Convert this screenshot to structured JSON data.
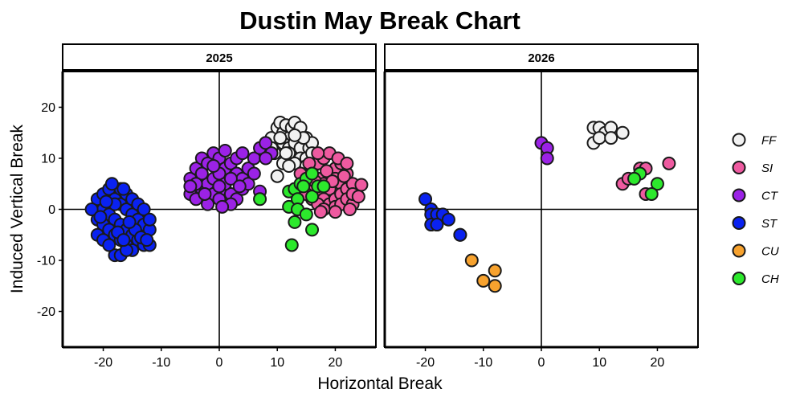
{
  "chart_data": {
    "type": "scatter",
    "title": "Dustin May Break Chart",
    "xlabel": "Horizontal Break",
    "ylabel": "Induced Vertical Break",
    "xlim": [
      -27,
      27
    ],
    "ylim": [
      -27,
      27
    ],
    "x_ticks": [
      -20,
      -10,
      0,
      10,
      20
    ],
    "y_ticks": [
      -20,
      -10,
      0,
      10,
      20
    ],
    "grid": false,
    "reference_lines": {
      "x": 0,
      "y": 0
    },
    "legend_position": "right",
    "panels": [
      {
        "label": "2025",
        "series": [
          {
            "name": "FF",
            "color": "#f2f2f2",
            "points": [
              [
                9,
                14
              ],
              [
                10,
                16
              ],
              [
                10.5,
                17
              ],
              [
                11,
                15
              ],
              [
                11.5,
                16.5
              ],
              [
                12,
                14
              ],
              [
                12.5,
                16
              ],
              [
                13,
                17
              ],
              [
                13.5,
                15
              ],
              [
                14,
                16
              ],
              [
                10,
                12
              ],
              [
                11,
                13
              ],
              [
                12,
                12
              ],
              [
                13,
                13
              ],
              [
                14,
                12
              ],
              [
                15,
                14
              ],
              [
                15.5,
                12
              ],
              [
                16,
                13
              ],
              [
                12,
                11
              ],
              [
                14,
                10
              ],
              [
                13,
                9
              ],
              [
                15,
                10
              ],
              [
                11,
                9
              ],
              [
                10,
                6.5
              ],
              [
                12,
                8.5
              ],
              [
                16,
                11
              ],
              [
                9.5,
                11
              ],
              [
                8,
                13
              ],
              [
                9,
                12
              ],
              [
                14.5,
                14
              ],
              [
                13,
                14.5
              ],
              [
                11.5,
                11
              ],
              [
                15,
                8.5
              ],
              [
                10.5,
                14
              ]
            ]
          },
          {
            "name": "SI",
            "color": "#ee5aa0",
            "points": [
              [
                16,
                8
              ],
              [
                17,
                9
              ],
              [
                18,
                10
              ],
              [
                19,
                7
              ],
              [
                20,
                8
              ],
              [
                21,
                9
              ],
              [
                17,
                6
              ],
              [
                18,
                5
              ],
              [
                19,
                4
              ],
              [
                20,
                6
              ],
              [
                21,
                5
              ],
              [
                22,
                7
              ],
              [
                16,
                4
              ],
              [
                17,
                3
              ],
              [
                18,
                2
              ],
              [
                19,
                1
              ],
              [
                20,
                2
              ],
              [
                21,
                3
              ],
              [
                22,
                4
              ],
              [
                23,
                5
              ],
              [
                24.5,
                4.8
              ],
              [
                15,
                6
              ],
              [
                16,
                2
              ],
              [
                17,
                1
              ],
              [
                18,
                0
              ],
              [
                20,
                0.5
              ],
              [
                21,
                1
              ],
              [
                22,
                2
              ],
              [
                23,
                1
              ],
              [
                19,
                11
              ],
              [
                17,
                11
              ],
              [
                15.5,
                9
              ],
              [
                20.5,
                10
              ],
              [
                22,
                9
              ],
              [
                18.5,
                7.5
              ],
              [
                14,
                7
              ],
              [
                19.5,
                5.5
              ],
              [
                16.5,
                5.5
              ],
              [
                23,
                3
              ],
              [
                21.5,
                6.5
              ],
              [
                17.5,
                -0.5
              ],
              [
                24,
                2.5
              ],
              [
                15,
                3
              ],
              [
                20,
                -0.5
              ],
              [
                22.5,
                0
              ]
            ]
          },
          {
            "name": "CT",
            "color": "#9b22e6",
            "points": [
              [
                -5,
                6
              ],
              [
                -4,
                8
              ],
              [
                -3,
                10
              ],
              [
                -2,
                9
              ],
              [
                -1,
                11
              ],
              [
                0,
                10
              ],
              [
                1,
                8
              ],
              [
                2,
                9
              ],
              [
                3,
                7
              ],
              [
                4,
                6
              ],
              [
                -5,
                3
              ],
              [
                -4,
                2
              ],
              [
                -3,
                4
              ],
              [
                -2,
                5
              ],
              [
                -1,
                3
              ],
              [
                0,
                2
              ],
              [
                1,
                4
              ],
              [
                2,
                3
              ],
              [
                3,
                2
              ],
              [
                4,
                4
              ],
              [
                -3,
                7
              ],
              [
                -1,
                6
              ],
              [
                0,
                7
              ],
              [
                1,
                5
              ],
              [
                2,
                6
              ],
              [
                5,
                8
              ],
              [
                6,
                10
              ],
              [
                7,
                12
              ],
              [
                8,
                13
              ],
              [
                9,
                11
              ],
              [
                7,
                3.5
              ],
              [
                -4,
                5
              ],
              [
                -2,
                1
              ],
              [
                0,
                4.5
              ],
              [
                3,
                10
              ],
              [
                5,
                5
              ],
              [
                -5,
                4.5
              ],
              [
                2,
                1
              ],
              [
                6,
                7
              ],
              [
                4,
                11
              ],
              [
                -1,
                8.5
              ],
              [
                8,
                10
              ],
              [
                1,
                11.5
              ],
              [
                -2.5,
                3
              ],
              [
                0.5,
                0.5
              ],
              [
                3.5,
                4.5
              ]
            ]
          },
          {
            "name": "ST",
            "color": "#0a22f0",
            "points": [
              [
                -21,
                2
              ],
              [
                -20,
                0
              ],
              [
                -19,
                -1
              ],
              [
                -18,
                -2
              ],
              [
                -17,
                -3
              ],
              [
                -16,
                -4
              ],
              [
                -15,
                -5
              ],
              [
                -14,
                -6
              ],
              [
                -13,
                -7
              ],
              [
                -12,
                -7
              ],
              [
                -21,
                -2
              ],
              [
                -20,
                -3
              ],
              [
                -19,
                -4
              ],
              [
                -18,
                -5
              ],
              [
                -17,
                -6
              ],
              [
                -16,
                -7
              ],
              [
                -15,
                -8
              ],
              [
                -18,
                -9
              ],
              [
                -17,
                -9
              ],
              [
                -16,
                -8
              ],
              [
                -20,
                3
              ],
              [
                -19,
                4
              ],
              [
                -18,
                2
              ],
              [
                -17,
                1
              ],
              [
                -16,
                0
              ],
              [
                -15,
                -1
              ],
              [
                -14,
                -2
              ],
              [
                -13,
                -3
              ],
              [
                -12,
                -4
              ],
              [
                -22,
                0
              ],
              [
                -21,
                -5
              ],
              [
                -20,
                -6
              ],
              [
                -19,
                -7
              ],
              [
                -18,
                1
              ],
              [
                -17,
                4
              ],
              [
                -16,
                3
              ],
              [
                -15,
                2
              ],
              [
                -14,
                1
              ],
              [
                -13,
                0
              ],
              [
                -12,
                -2
              ],
              [
                -18.5,
                5
              ],
              [
                -16.5,
                4
              ],
              [
                -20.5,
                -1.5
              ],
              [
                -17.5,
                -4.5
              ],
              [
                -14.5,
                -4
              ],
              [
                -13.5,
                -5.5
              ],
              [
                -19.5,
                1.5
              ],
              [
                -15.5,
                -2.5
              ],
              [
                -16.5,
                -6
              ],
              [
                -12.5,
                -6
              ]
            ]
          },
          {
            "name": "CU",
            "color": "#f7a22e",
            "points": []
          },
          {
            "name": "CH",
            "color": "#2ce82c",
            "points": [
              [
                7,
                2
              ],
              [
                12,
                3.5
              ],
              [
                12,
                0.5
              ],
              [
                13,
                4
              ],
              [
                13.5,
                2
              ],
              [
                14,
                5
              ],
              [
                15,
                6
              ],
              [
                16,
                7
              ],
              [
                16,
                2.5
              ],
              [
                17,
                4.5
              ],
              [
                18,
                4.5
              ],
              [
                13.5,
                0
              ],
              [
                13,
                -2.5
              ],
              [
                15,
                -1
              ],
              [
                16,
                -4
              ],
              [
                12.5,
                -7
              ],
              [
                14.5,
                4.5
              ]
            ]
          }
        ]
      },
      {
        "label": "2026",
        "series": [
          {
            "name": "FF",
            "color": "#f2f2f2",
            "points": [
              [
                9,
                16
              ],
              [
                10,
                16
              ],
              [
                11,
                15
              ],
              [
                12,
                16
              ],
              [
                14,
                15
              ],
              [
                9,
                13
              ],
              [
                10,
                14
              ],
              [
                12,
                14
              ]
            ]
          },
          {
            "name": "SI",
            "color": "#ee5aa0",
            "points": [
              [
                14,
                5
              ],
              [
                15,
                6
              ],
              [
                17,
                8
              ],
              [
                18,
                8
              ],
              [
                18,
                3
              ],
              [
                22,
                9
              ]
            ]
          },
          {
            "name": "CT",
            "color": "#9b22e6",
            "points": [
              [
                0,
                13
              ],
              [
                1,
                12
              ],
              [
                1,
                10
              ]
            ]
          },
          {
            "name": "ST",
            "color": "#0a22f0",
            "points": [
              [
                -20,
                2
              ],
              [
                -19,
                0
              ],
              [
                -19,
                -1
              ],
              [
                -18,
                -1
              ],
              [
                -19,
                -3
              ],
              [
                -17,
                -1
              ],
              [
                -18,
                -3
              ],
              [
                -16,
                -2
              ],
              [
                -14,
                -5
              ],
              [
                -14,
                -5
              ]
            ]
          },
          {
            "name": "CU",
            "color": "#f7a22e",
            "points": [
              [
                -12,
                -10
              ],
              [
                -8,
                -12
              ],
              [
                -10,
                -14
              ],
              [
                -8,
                -15
              ]
            ]
          },
          {
            "name": "CH",
            "color": "#2ce82c",
            "points": [
              [
                17,
                7
              ],
              [
                16,
                6
              ],
              [
                20,
                5
              ],
              [
                19,
                3
              ]
            ]
          }
        ]
      }
    ],
    "legend": [
      {
        "name": "FF",
        "color": "#f2f2f2"
      },
      {
        "name": "SI",
        "color": "#ee5aa0"
      },
      {
        "name": "CT",
        "color": "#9b22e6"
      },
      {
        "name": "ST",
        "color": "#0a22f0"
      },
      {
        "name": "CU",
        "color": "#f7a22e"
      },
      {
        "name": "CH",
        "color": "#2ce82c"
      }
    ]
  }
}
